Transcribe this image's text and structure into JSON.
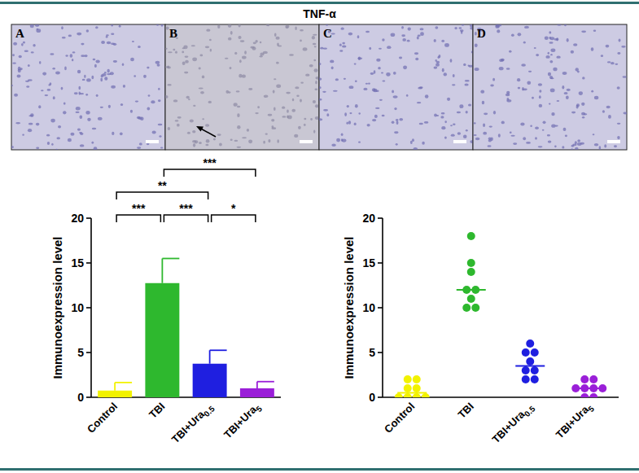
{
  "figure": {
    "title": "TNF-α",
    "panels": [
      "A",
      "B",
      "C",
      "D"
    ]
  },
  "chart_data": [
    {
      "type": "bar",
      "categories": [
        "Control",
        "TBI",
        "TBI+Ura0.5",
        "TBI+Ura5"
      ],
      "values": [
        0.75,
        12.75,
        3.75,
        1.0
      ],
      "errors": [
        0.9,
        2.75,
        1.5,
        0.75
      ],
      "colors": [
        "#f2f200",
        "#2eb82e",
        "#1f1fe0",
        "#9a1fd8"
      ],
      "ylim": [
        0,
        20
      ],
      "yticks": [
        0,
        5,
        10,
        15,
        20
      ],
      "y_label": "Immunoexpression level",
      "comparisons": [
        {
          "groups": [
            0,
            1
          ],
          "label": "***"
        },
        {
          "groups": [
            1,
            2
          ],
          "label": "***"
        },
        {
          "groups": [
            0,
            2
          ],
          "label": "**"
        },
        {
          "groups": [
            2,
            3
          ],
          "label": "*"
        },
        {
          "groups": [
            1,
            3
          ],
          "label": "***"
        }
      ]
    },
    {
      "type": "scatter",
      "categories": [
        "Control",
        "TBI",
        "TBI+Ura0.5",
        "TBI+Ura5"
      ],
      "values": [
        [
          0,
          0,
          0,
          0,
          1,
          1,
          2,
          2
        ],
        [
          18,
          15,
          14,
          12,
          12,
          11,
          10,
          10
        ],
        [
          6,
          5,
          5,
          4,
          3,
          3,
          2,
          2
        ],
        [
          2,
          2,
          1,
          1,
          1,
          1,
          0,
          0
        ]
      ],
      "medians": [
        0.5,
        12,
        3.5,
        1
      ],
      "colors": [
        "#f2f200",
        "#2eb82e",
        "#1f1fe0",
        "#9a1fd8"
      ],
      "ylim": [
        0,
        20
      ],
      "yticks": [
        0,
        5,
        10,
        15,
        20
      ],
      "y_label": "Immunoexpression level"
    }
  ]
}
